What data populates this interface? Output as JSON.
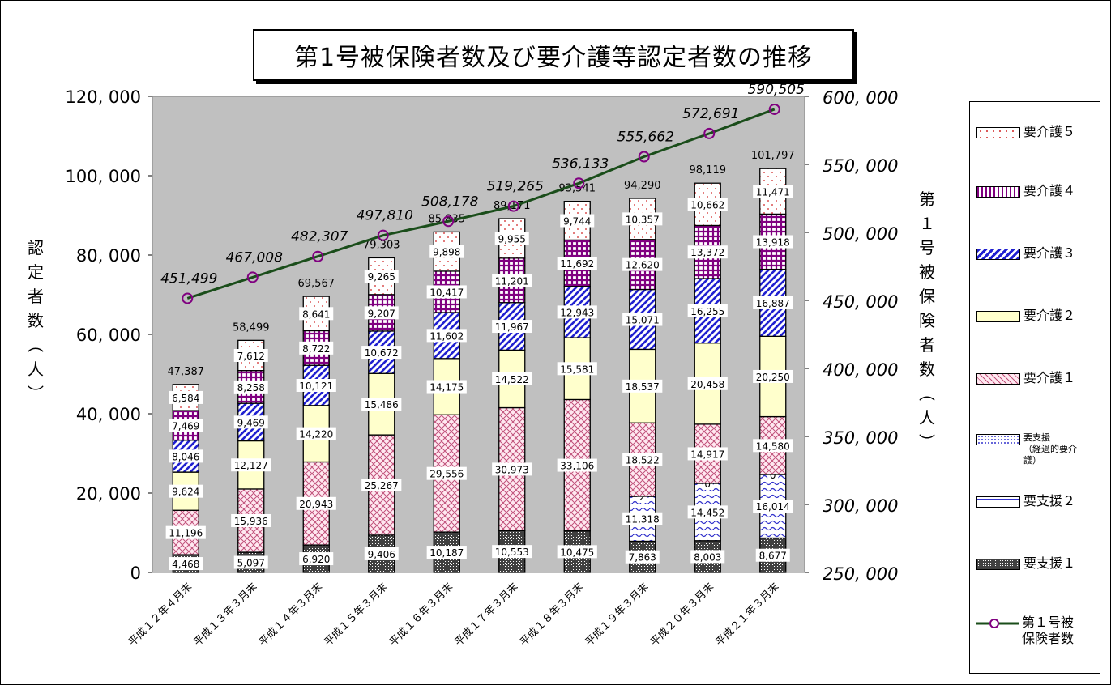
{
  "chart_data": {
    "type": "bar",
    "title": "第1号被保険者数及び要介護等認定者数の推移",
    "ylabel": "認定者数（人）",
    "y2label": "第１号被保険者数（人）",
    "ylim": [
      0,
      120000
    ],
    "y2lim": [
      250000,
      600000
    ],
    "yticks": [
      "0",
      "20, 000",
      "40, 000",
      "60, 000",
      "80, 000",
      "100, 000",
      "120, 000"
    ],
    "y2ticks": [
      "250, 000",
      "300, 000",
      "350, 000",
      "400, 000",
      "450, 000",
      "500, 000",
      "550, 000",
      "600, 000"
    ],
    "categories": [
      "平成１２年４月末",
      "平成１３年３月末",
      "平成１４年３月末",
      "平成１５年３月末",
      "平成１６年３月末",
      "平成１７年３月末",
      "平成１８年３月末",
      "平成１９年３月末",
      "平成２０年３月末",
      "平成２１年３月末"
    ],
    "series": [
      {
        "name": "要支援１",
        "values": [
          4468,
          5097,
          6920,
          9406,
          10187,
          10553,
          10475,
          7863,
          8003,
          8677
        ]
      },
      {
        "name": "要支援２",
        "values": [
          null,
          null,
          null,
          null,
          null,
          null,
          null,
          11318,
          14452,
          16014
        ]
      },
      {
        "name": "要支援（経過的要介護）",
        "values": [
          null,
          null,
          null,
          null,
          null,
          null,
          null,
          2,
          0,
          0
        ]
      },
      {
        "name": "要介護１",
        "values": [
          11196,
          15936,
          20943,
          25267,
          29556,
          30973,
          33106,
          18522,
          14917,
          14580
        ]
      },
      {
        "name": "要介護２",
        "values": [
          9624,
          12127,
          14220,
          15486,
          14175,
          14522,
          15581,
          18537,
          20458,
          20250
        ]
      },
      {
        "name": "要介護３",
        "values": [
          8046,
          9469,
          10121,
          10672,
          11602,
          11967,
          12943,
          15071,
          16255,
          16887
        ]
      },
      {
        "name": "要介護４",
        "values": [
          7469,
          8258,
          8722,
          9207,
          10417,
          11201,
          11692,
          12620,
          13372,
          13918
        ]
      },
      {
        "name": "要介護５",
        "values": [
          6584,
          7612,
          8641,
          9265,
          9898,
          9955,
          9744,
          10357,
          10662,
          11471
        ]
      }
    ],
    "totals": [
      47387,
      58499,
      69567,
      79303,
      85835,
      89171,
      93541,
      94290,
      98119,
      101797
    ],
    "line_series": {
      "name": "第１号被保険者数",
      "axis": "right",
      "values": [
        451499,
        467008,
        482307,
        497810,
        508178,
        519265,
        536133,
        555662,
        572691,
        590505
      ]
    },
    "labels": {
      "values": [
        [
          "4,468",
          "5,097",
          "6,920",
          "9,406",
          "10,187",
          "10,553",
          "10,475",
          "7,863",
          "8,003",
          "8,677"
        ],
        [
          "",
          "",
          "",
          "",
          "",
          "",
          "",
          "11,318",
          "14,452",
          "16,014"
        ],
        [
          "",
          "",
          "",
          "",
          "",
          "",
          "",
          "2",
          "0",
          "0"
        ],
        [
          "11,196",
          "15,936",
          "20,943",
          "25,267",
          "29,556",
          "30,973",
          "33,106",
          "18,522",
          "14,917",
          "14,580"
        ],
        [
          "9,624",
          "12,127",
          "14,220",
          "15,486",
          "14,175",
          "14,522",
          "15,581",
          "18,537",
          "20,458",
          "20,250"
        ],
        [
          "8,046",
          "9,469",
          "10,121",
          "10,672",
          "11,602",
          "11,967",
          "12,943",
          "15,071",
          "16,255",
          "16,887"
        ],
        [
          "7,469",
          "8,258",
          "8,722",
          "9,207",
          "10,417",
          "11,201",
          "11,692",
          "12,620",
          "13,372",
          "13,918"
        ],
        [
          "6,584",
          "7,612",
          "8,641",
          "9,265",
          "9,898",
          "9,955",
          "9,744",
          "10,357",
          "10,662",
          "11,471"
        ]
      ],
      "totals": [
        "47,387",
        "58,499",
        "69,567",
        "79,303",
        "85,835",
        "89,171",
        "93,541",
        "94,290",
        "98,119",
        "101,797"
      ],
      "line": [
        "451,499",
        "467,008",
        "482,307",
        "497,810",
        "508,178",
        "519,265",
        "536,133",
        "555,662",
        "572,691",
        "590,505"
      ]
    },
    "plot_background": "#c0c0c0",
    "line_color": "#1a4d1a",
    "marker_color": "#800080",
    "grid": false,
    "legend_position": "right"
  },
  "legend": {
    "items": [
      {
        "key": "k5",
        "label": "要介護５"
      },
      {
        "key": "k4",
        "label": "要介護４"
      },
      {
        "key": "k3",
        "label": "要介護３"
      },
      {
        "key": "k2",
        "label": "要介護２"
      },
      {
        "key": "k1",
        "label": "要介護１"
      },
      {
        "key": "kk",
        "label": "要支援\n（経過的要介\n護）"
      },
      {
        "key": "s2",
        "label": "要支援２"
      },
      {
        "key": "s1",
        "label": "要支援１"
      },
      {
        "key": "line",
        "label": "第１号被\n保険者数"
      }
    ]
  }
}
